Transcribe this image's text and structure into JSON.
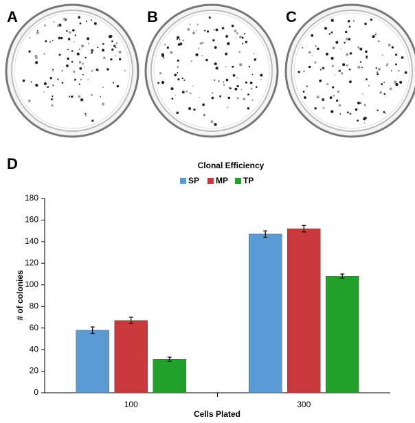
{
  "panels": [
    "A",
    "B",
    "C",
    "D"
  ],
  "chart_data": {
    "type": "bar",
    "title": "Clonal Efficiency",
    "x_label": "Cells Plated",
    "y_label": "# of colonies",
    "categories": [
      "100",
      "300"
    ],
    "series": [
      {
        "name": "SP",
        "color": "#5b9bd5",
        "values": [
          58,
          147
        ],
        "errors": [
          3,
          3
        ]
      },
      {
        "name": "MP",
        "color": "#c9383a",
        "values": [
          67,
          152
        ],
        "errors": [
          3,
          3
        ]
      },
      {
        "name": "TP",
        "color": "#22a02a",
        "values": [
          31,
          108
        ],
        "errors": [
          2,
          2
        ]
      }
    ],
    "ylim": [
      0,
      180
    ],
    "yticks": [
      0,
      20,
      40,
      60,
      80,
      100,
      120,
      140,
      160,
      180
    ],
    "grid": false,
    "legend": "top"
  }
}
